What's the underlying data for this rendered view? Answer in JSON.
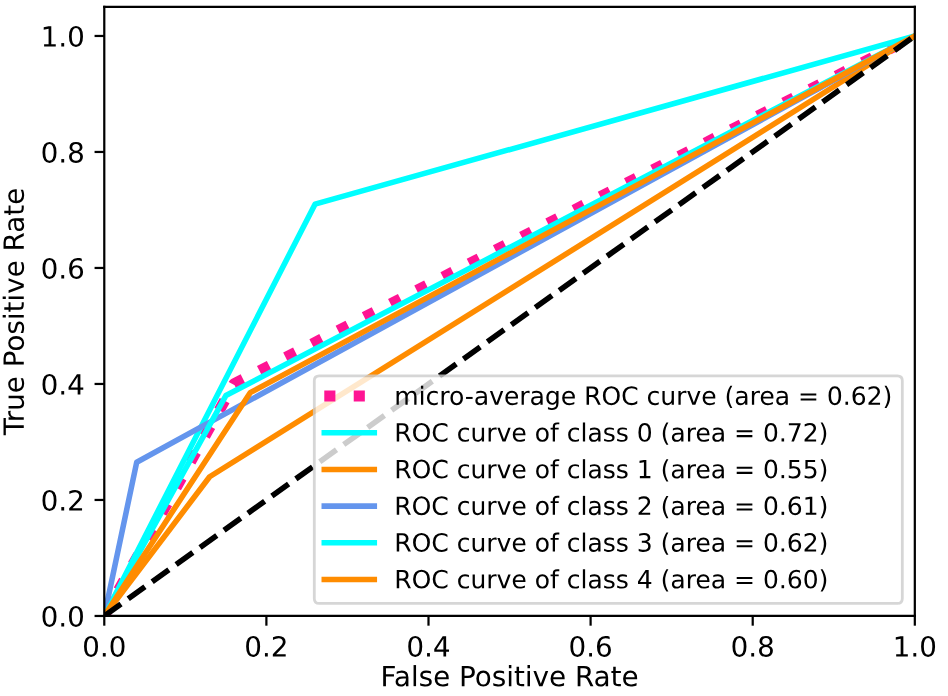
{
  "chart_data": {
    "type": "line",
    "xlabel": "False Positive Rate",
    "ylabel": "True Positive Rate",
    "xlim": [
      0.0,
      1.0
    ],
    "ylim": [
      0.0,
      1.05
    ],
    "xticks": [
      {
        "value": 0,
        "label": "0.0"
      },
      0.2,
      0.4,
      0.6,
      0.8,
      {
        "value": 1,
        "label": "1.0"
      }
    ],
    "yticks": [
      {
        "value": 0,
        "label": "0.0"
      },
      0.2,
      0.4,
      0.6,
      0.8,
      {
        "value": 1,
        "label": "1.0"
      }
    ],
    "grid": false,
    "legend": "lower right",
    "marker": "none",
    "series": [
      {
        "name": "micro-average ROC curve (area = 0.62)",
        "color": "#ff1493",
        "line_style": "dotted",
        "x": [
          0,
          0.16,
          1
        ],
        "values": [
          0,
          0.4,
          1
        ]
      },
      {
        "name": "ROC curve of class 0 (area = 0.72)",
        "color": "#00ffff",
        "line_style": "solid",
        "x": [
          0,
          0.26,
          1
        ],
        "values": [
          0,
          0.71,
          1
        ]
      },
      {
        "name": "ROC curve of class 1 (area = 0.55)",
        "color": "#ff8c00",
        "line_style": "solid",
        "x": [
          0,
          0.13,
          1
        ],
        "values": [
          0,
          0.24,
          1
        ]
      },
      {
        "name": "ROC curve of class 2 (area = 0.61)",
        "color": "#6495ed",
        "line_style": "solid",
        "x": [
          0,
          0.04,
          1
        ],
        "values": [
          0,
          0.265,
          1
        ]
      },
      {
        "name": "ROC curve of class 3 (area = 0.62)",
        "color": "#00ffff",
        "line_style": "solid",
        "x": [
          0,
          0.15,
          1
        ],
        "values": [
          0,
          0.38,
          1
        ]
      },
      {
        "name": "ROC curve of class 4 (area = 0.60)",
        "color": "#ff8c00",
        "line_style": "solid",
        "x": [
          0,
          0.18,
          1
        ],
        "values": [
          0,
          0.385,
          1
        ]
      },
      {
        "color": "#000000",
        "line_style": "dashed",
        "x": [
          0,
          1
        ],
        "values": [
          0,
          1
        ]
      }
    ]
  }
}
